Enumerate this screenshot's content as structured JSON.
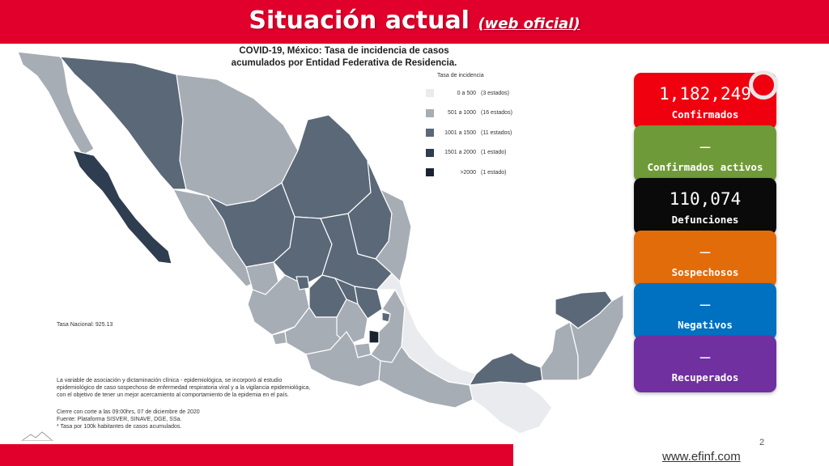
{
  "header": {
    "title": "Situación actual",
    "subtitle_open": "(",
    "subtitle": "web oficial",
    "subtitle_close": ")"
  },
  "map": {
    "title_line1": "COVID-19, México: Tasa de incidencia de casos",
    "title_line2": "acumulados por Entidad Federativa de Residencia.",
    "legend_title": "Tasa de incidencia",
    "legend": [
      {
        "range": "0 a 500",
        "count": "(3 estados)",
        "color": "#e9ebee"
      },
      {
        "range": "501 a 1000",
        "count": "(16 estados)",
        "color": "#a7adb5"
      },
      {
        "range": "1001 a 1500",
        "count": "(11 estados)",
        "color": "#5a6878"
      },
      {
        "range": "1501 a 2000",
        "count": "(1 estado)",
        "color": "#2e3d4f"
      },
      {
        "range": ">2000",
        "count": "(1 estado)",
        "color": "#1a2430"
      }
    ],
    "tasa_nacional": "Tasa Nacional: 925.13",
    "note_lines": [
      "La variable de asociación y dictaminación clínica - epidemiológica, se incorporó al estudio",
      "epidemiológico de caso sospechoso de enfermedad respiratoria viral y a la vigilancia epidemiológica,",
      "con el objetivo de tener un mejor acercamiento al comportamiento de la epidemia en el país."
    ],
    "source_lines": [
      "Cierre con corte a las 09:00hrs, 07 de diciembre de 2020",
      "Fuente: Plataforma SISVER, SINAVE, DGE, SSa.",
      "* Tasa por 100k habitantes de casos acumulados."
    ]
  },
  "cards": [
    {
      "value": "1,182,249",
      "label": "Confirmados",
      "color": "#f0000e"
    },
    {
      "value": "—",
      "label": "Confirmados activos",
      "color": "#6f9a3a"
    },
    {
      "value": "110,074",
      "label": "Defunciones",
      "color": "#0a0a0a"
    },
    {
      "value": "—",
      "label": "Sospechosos",
      "color": "#e36c0a"
    },
    {
      "value": "—",
      "label": "Negativos",
      "color": "#0070c0"
    },
    {
      "value": "—",
      "label": "Recuperados",
      "color": "#7030a0"
    }
  ],
  "footer": {
    "page_number": "2",
    "website": "www.efinf.com"
  }
}
